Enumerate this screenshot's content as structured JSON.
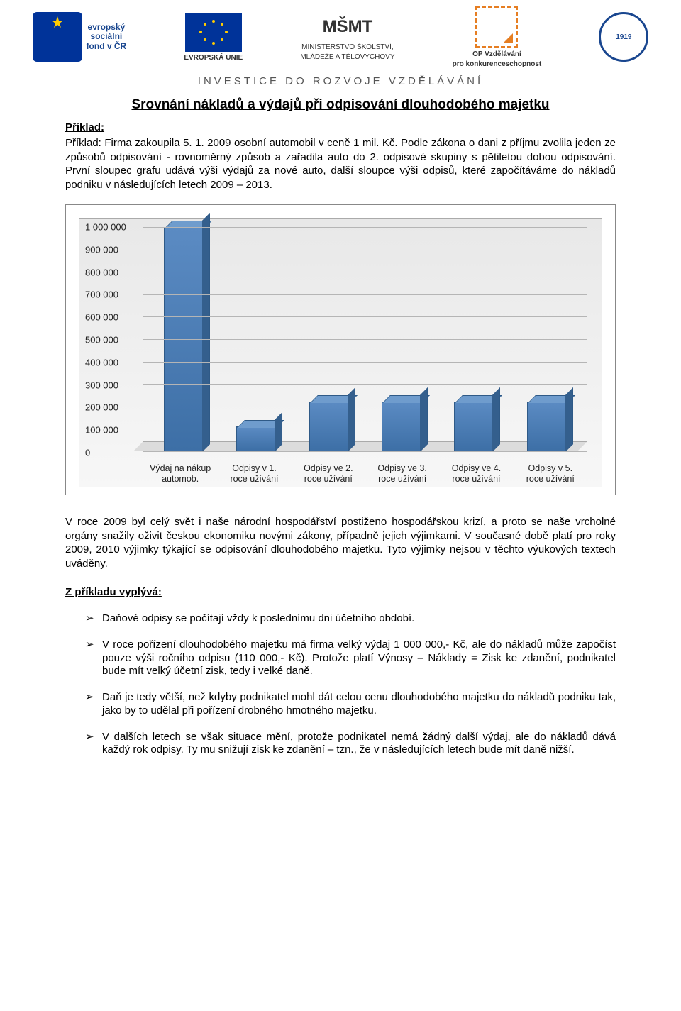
{
  "header": {
    "invest_line": "INVESTICE DO ROZVOJE VZDĚLÁVÁNÍ",
    "logos": {
      "esf_label1": "evropský",
      "esf_label2": "sociální",
      "esf_label3": "fond v ČR",
      "eu_label": "EVROPSKÁ UNIE",
      "msmt_label1": "MINISTERSTVO ŠKOLSTVÍ,",
      "msmt_label2": "MLÁDEŽE A TĚLOVÝCHOVY",
      "msmt_mark": "MŠMT",
      "op_label1": "OP Vzdělávání",
      "op_label2": "pro konkurenceschopnost",
      "gear_text": "1919"
    }
  },
  "title": "Srovnání nákladů a výdajů při odpisování dlouhodobého majetku",
  "example_label": "Příklad:",
  "example_text": "Příklad: Firma zakoupila  5. 1. 2009 osobní automobil v ceně 1 mil. Kč. Podle zákona o dani z příjmu zvolila jeden ze způsobů odpisování - rovnoměrný způsob a zařadila auto do 2. odpisové skupiny s pětiletou dobou odpisování. První sloupec grafu udává výši výdajů za nové auto, další sloupce výši odpisů, které započítáváme do nákladů podniku v následujících letech 2009 – 2013.",
  "chart": {
    "type": "bar",
    "categories": [
      "Výdaj na nákup automob.",
      "Odpisy  v 1. roce užívání",
      "Odpisy ve 2. roce užívání",
      "Odpisy ve 3. roce užívání",
      "Odpisy ve 4. roce užívání",
      "Odpisy v 5. roce užívání"
    ],
    "values": [
      1000000,
      110000,
      222500,
      222500,
      222500,
      222500
    ],
    "ylim_max": 1000000,
    "ytick_step": 100000,
    "yticks": [
      "0",
      "100 000",
      "200 000",
      "300 000",
      "400 000",
      "500 000",
      "600 000",
      "700 000",
      "800 000",
      "900 000",
      "1 000 000"
    ],
    "bar_face_color": "#4a7cb5",
    "bar_top_color": "#6f9ccd",
    "bar_side_color": "#345f8d",
    "bar_border_color": "#2f5a87",
    "grid_color": "#b5b5b5",
    "bg_top": "#e8e8e8",
    "bg_bottom": "#f7f7f7",
    "label_fontsize": 13,
    "xlabel_fontsize": 12.5
  },
  "after_chart_text": "V roce 2009 byl celý svět i naše národní hospodářství postiženo hospodářskou krizí, a proto se naše vrcholné orgány snažily oživit českou ekonomiku novými zákony, případně jejich výjimkami. V současné době platí pro roky 2009, 2010  výjimky týkající se odpisování dlouhodobého majetku. Tyto výjimky nejsou v těchto výukových textech uváděny.",
  "conclusion_label": "Z příkladu vyplývá:",
  "bullets": [
    "Daňové odpisy se počítají vždy k poslednímu dni účetního období.",
    "V roce pořízení dlouhodobého majetku má firma velký výdaj 1 000 000,- Kč, ale do nákladů může započíst pouze výši ročního odpisu (110 000,- Kč). Protože platí Výnosy – Náklady =  Zisk ke zdanění,  podnikatel  bude  mít  velký  účetní zisk, tedy  i velké  daně.",
    "Daň  je  tedy  větší, než kdyby podnikatel mohl dát celou  cenu dlouhodobého majetku do nákladů podniku tak, jako by to udělal při pořízení drobného hmotného majetku.",
    "V dalších letech se však situace mění, protože podnikatel nemá žádný další výdaj, ale do nákladů dává  každý rok odpisy.  Ty mu snižují zisk ke zdanění – tzn., že v následujících letech bude mít daně nižší."
  ]
}
